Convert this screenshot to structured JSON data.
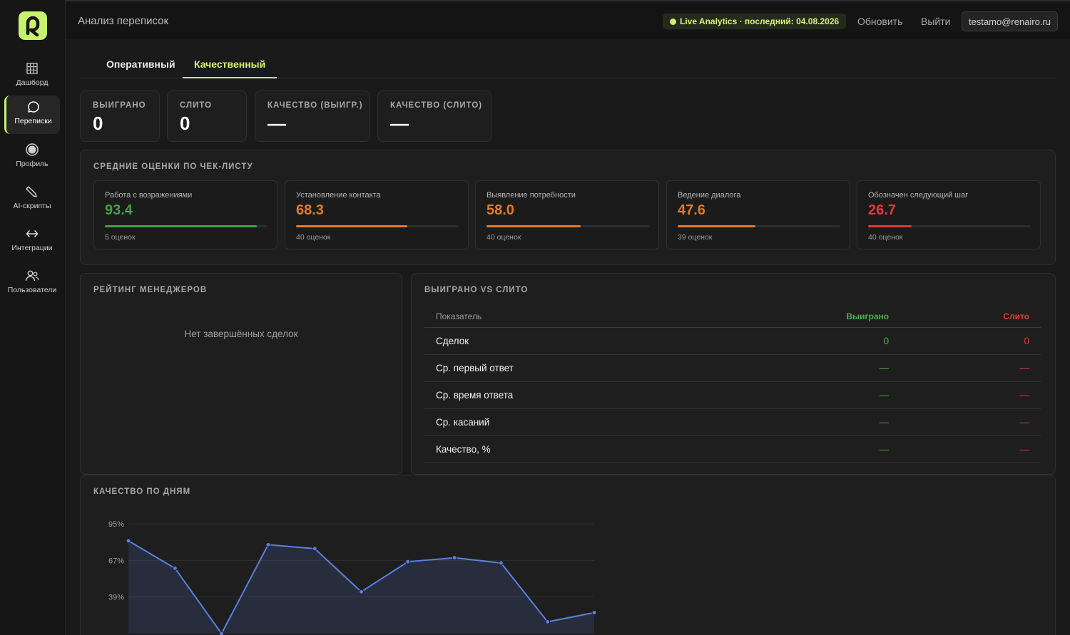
{
  "app": {
    "title": "Анализ переписок",
    "live_badge": "Live Analytics · последний: 04.08.2026",
    "refresh": "Обновить",
    "logout": "Выйти",
    "user_email": "testamo@renairo.ru",
    "accent": "#c7f26b"
  },
  "sidebar": {
    "items": [
      {
        "label": "Дашборд",
        "icon": "grid-icon"
      },
      {
        "label": "Переписки",
        "icon": "chat-icon",
        "active": true
      },
      {
        "label": "Профиль",
        "icon": "profile-icon"
      },
      {
        "label": "AI-скрипты",
        "icon": "pencil-icon"
      },
      {
        "label": "Интеграции",
        "icon": "arrows-icon"
      },
      {
        "label": "Пользователи",
        "icon": "users-icon"
      }
    ]
  },
  "tabs": [
    {
      "label": "Оперативный"
    },
    {
      "label": "Качественный",
      "active": true
    }
  ],
  "kpis": [
    {
      "label": "ВЫИГРАНО",
      "value": "0"
    },
    {
      "label": "СЛИТО",
      "value": "0"
    },
    {
      "label": "КАЧЕСТВО (ВЫИГР.)",
      "value": "—"
    },
    {
      "label": "КАЧЕСТВО (СЛИТО)",
      "value": "—"
    }
  ],
  "checklist": {
    "title": "СРЕДНИЕ ОЦЕНКИ ПО ЧЕК-ЛИСТУ",
    "items": [
      {
        "name": "Работа с возражениями",
        "score": "93.4",
        "value": 93.4,
        "count": "5 оценок",
        "color": "#43a047"
      },
      {
        "name": "Установление контакта",
        "score": "68.3",
        "value": 68.3,
        "count": "40 оценок",
        "color": "#e07b2a"
      },
      {
        "name": "Выявление потребности",
        "score": "58.0",
        "value": 58.0,
        "count": "40 оценок",
        "color": "#e07b2a"
      },
      {
        "name": "Ведение диалога",
        "score": "47.6",
        "value": 47.6,
        "count": "39 оценок",
        "color": "#e07b2a"
      },
      {
        "name": "Обозначен следующий шаг",
        "score": "26.7",
        "value": 26.7,
        "count": "40 оценок",
        "color": "#e53935"
      }
    ]
  },
  "managers": {
    "title": "РЕЙТИНГ МЕНЕДЖЕРОВ",
    "empty": "Нет завершённых сделок"
  },
  "comparison": {
    "title": "ВЫИГРАНО VS СЛИТО",
    "headers": [
      "Показатель",
      "Выиграно",
      "Слито"
    ],
    "rows": [
      {
        "metric": "Сделок",
        "won": "0",
        "lost": "0"
      },
      {
        "metric": "Ср. первый ответ",
        "won": "—",
        "lost": "—"
      },
      {
        "metric": "Ср. время ответа",
        "won": "—",
        "lost": "—"
      },
      {
        "metric": "Ср. касаний",
        "won": "—",
        "lost": "—"
      },
      {
        "metric": "Качество, %",
        "won": "—",
        "lost": "—"
      }
    ]
  },
  "chart_data": {
    "type": "area",
    "title": "КАЧЕСТВО ПО ДНЯМ",
    "y_ticks": [
      "95%",
      "67%",
      "39%"
    ],
    "ylim": [
      11,
      95
    ],
    "values": [
      82,
      61,
      11,
      79,
      76,
      43,
      66,
      69,
      65,
      20,
      27
    ],
    "grid": true,
    "color": "#5b7fe0"
  }
}
